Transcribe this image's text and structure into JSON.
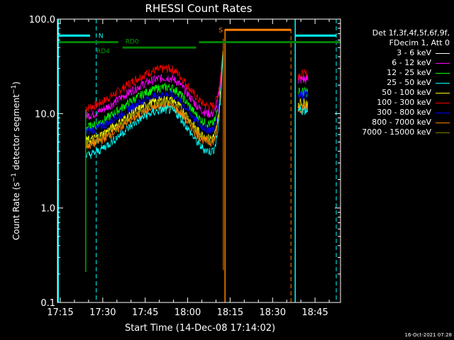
{
  "chart_data": {
    "type": "line",
    "title": "RHESSI Count Rates",
    "xlabel": "Start Time (14-Dec-08 17:14:02)",
    "ylabel": "Count Rate (s⁻¹ detector segment⁻¹)",
    "yscale": "log",
    "ylim": [
      0.1,
      100
    ],
    "xlim_minutes": [
      "17:14",
      "18:54"
    ],
    "x_ticks": [
      "17:15",
      "17:30",
      "17:45",
      "18:00",
      "18:15",
      "18:30",
      "18:45"
    ],
    "y_ticks": [
      "0.1",
      "1.0",
      "10.0",
      "100.0"
    ],
    "legend_header": [
      "Det 1f,3f,4f,5f,6f,9f,",
      "FDecim 1, Att 0"
    ],
    "legend_position": "right",
    "series": [
      {
        "name": "3 - 6 keV",
        "color": "#000000"
      },
      {
        "name": "6 - 12 keV",
        "color": "#ff00ff"
      },
      {
        "name": "12 - 25 keV",
        "color": "#00ff00"
      },
      {
        "name": "25 - 50 keV",
        "color": "#00ffff"
      },
      {
        "name": "50 - 100 keV",
        "color": "#ffff00"
      },
      {
        "name": "100 - 300 keV",
        "color": "#ff0000"
      },
      {
        "name": "300 - 800 keV",
        "color": "#0000ff"
      },
      {
        "name": "800 - 7000 keV",
        "color": "#ff8000"
      },
      {
        "name": "7000 - 15000 keV",
        "color": "#808000"
      }
    ],
    "curves": [
      {
        "series": "100 - 300 keV",
        "color": "#ff0000",
        "peak": 30,
        "start": 11.5,
        "trough": 12,
        "end": 26
      },
      {
        "series": "6 - 12 keV",
        "color": "#ff00ff",
        "peak": 24,
        "start": 9.5,
        "trough": 10,
        "end": 23
      },
      {
        "series": "12 - 25 keV",
        "color": "#00ff00",
        "peak": 19,
        "start": 7.2,
        "trough": 7.8,
        "end": 17
      },
      {
        "series": "300 - 800 keV",
        "color": "#0000ff",
        "peak": 16,
        "start": 6.5,
        "trough": 6.8,
        "end": 16
      },
      {
        "series": "50 - 100 keV",
        "color": "#ffff00",
        "peak": 14,
        "start": 5.2,
        "trough": 5.5,
        "end": 13
      },
      {
        "series": "7000 - 15000 keV",
        "color": "#808000",
        "peak": 13,
        "start": 4.8,
        "trough": 5.2,
        "end": 12
      },
      {
        "series": "800 - 7000 keV",
        "color": "#ff8000",
        "peak": 12,
        "start": 4.6,
        "trough": 5.0,
        "end": 11.5
      },
      {
        "series": "25 - 50 keV",
        "color": "#00ffff",
        "peak": 11,
        "start": 3.6,
        "trough": 4.0,
        "end": 11
      }
    ],
    "annotations": [
      {
        "label": "N",
        "color": "#00ffff"
      },
      {
        "label": "RD0",
        "color": "#00a000"
      },
      {
        "label": "RD4",
        "color": "#00a000"
      },
      {
        "label": "S",
        "color": "#ff8000"
      }
    ],
    "timestamp": "16-Oct-2021 07:28"
  }
}
